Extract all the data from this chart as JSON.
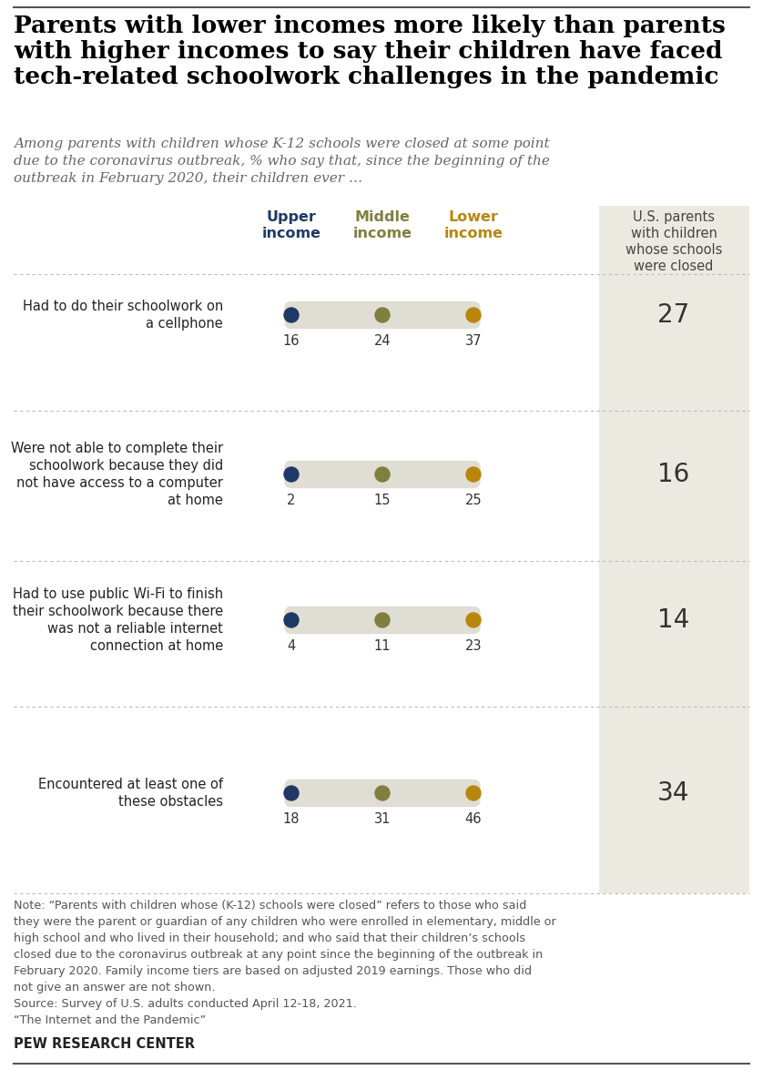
{
  "title": "Parents with lower incomes more likely than parents\nwith higher incomes to say their children have faced\ntech-related schoolwork challenges in the pandemic",
  "subtitle": "Among parents with children whose K-12 schools were closed at some point\ndue to the coronavirus outbreak, % who say that, since the beginning of the\noutbreak in February 2020, their children ever …",
  "categories": [
    "Had to do their schoolwork on\na cellphone",
    "Were not able to complete their\nschoolwork because they did\nnot have access to a computer\nat home",
    "Had to use public Wi-Fi to finish\ntheir schoolwork because there\nwas not a reliable internet\nconnection at home",
    "Encountered at least one of\nthese obstacles"
  ],
  "upper_income": [
    16,
    2,
    4,
    18
  ],
  "middle_income": [
    24,
    15,
    11,
    31
  ],
  "lower_income": [
    37,
    25,
    23,
    46
  ],
  "us_parents": [
    27,
    16,
    14,
    34
  ],
  "color_upper": "#1f3864",
  "color_middle": "#7f7f3f",
  "color_lower": "#b8860b",
  "color_connector": "#e0ddd4",
  "color_bg_right": "#eceae0",
  "note_text": "Note: “Parents with children whose (K-12) schools were closed” refers to those who said\nthey were the parent or guardian of any children who were enrolled in elementary, middle or\nhigh school and who lived in their household; and who said that their children’s schools\nclosed due to the coronavirus outbreak at any point since the beginning of the outbreak in\nFebruary 2020. Family income tiers are based on adjusted 2019 earnings. Those who did\nnot give an answer are not shown.\nSource: Survey of U.S. adults conducted April 12-18, 2021.\n“The Internet and the Pandemic”",
  "pew_label": "PEW RESEARCH CENTER",
  "col_header_upper": "Upper\nincome",
  "col_header_middle": "Middle\nincome",
  "col_header_lower": "Lower\nincome",
  "col_header_right": "U.S. parents\nwith children\nwhose schools\nwere closed"
}
